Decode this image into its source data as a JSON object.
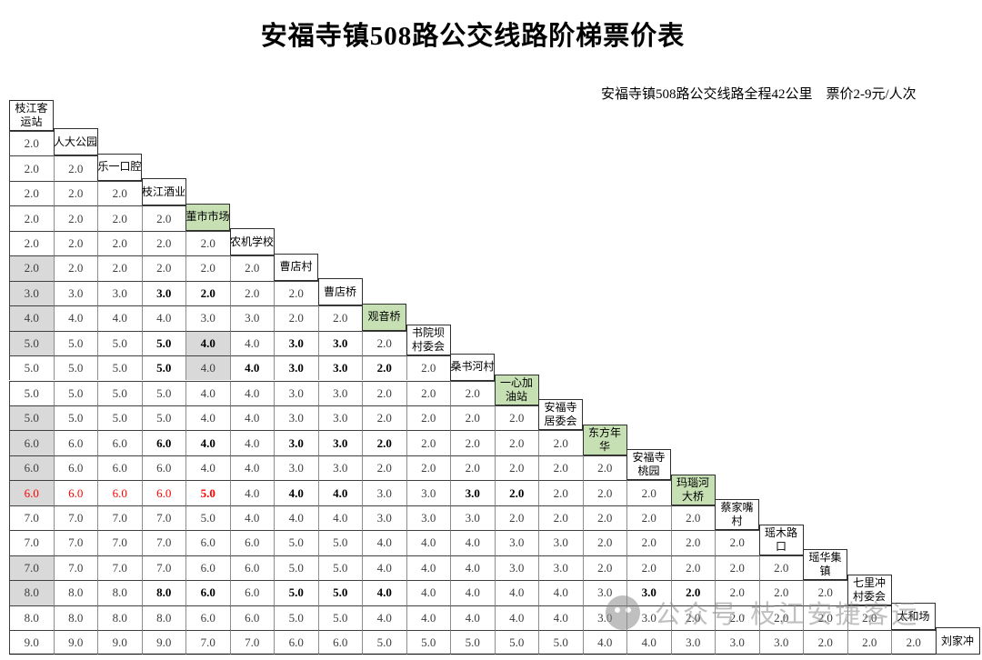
{
  "title": "安福寺镇508路公交线路阶梯票价表",
  "subtitle": "安福寺镇508路公交线路全程42公里　票价2-9元/人次",
  "watermark": {
    "icon": "wechat-logo",
    "text": "公众号·枝江安捷客运"
  },
  "colors": {
    "station_highlight_green": "#c6e0b4",
    "shaded_cell_gray": "#d9d9d9",
    "alert_red": "#ff0000"
  },
  "fare_table": {
    "unit": "元",
    "stations": [
      {
        "no": 1,
        "name": "枝江客运站",
        "lines": [
          "枝江客",
          "运站"
        ],
        "green": false
      },
      {
        "no": 2,
        "name": "人大公园",
        "lines": [
          "人大公园"
        ],
        "green": false
      },
      {
        "no": 3,
        "name": "乐一口腔",
        "lines": [
          "乐一口腔"
        ],
        "green": false
      },
      {
        "no": 4,
        "name": "枝江酒业",
        "lines": [
          "枝江酒业"
        ],
        "green": false
      },
      {
        "no": 5,
        "name": "董市市场",
        "lines": [
          "董市市场"
        ],
        "green": true
      },
      {
        "no": 6,
        "name": "农机学校",
        "lines": [
          "农机学校"
        ],
        "green": false
      },
      {
        "no": 7,
        "name": "曹店村",
        "lines": [
          "曹店村"
        ],
        "green": false
      },
      {
        "no": 8,
        "name": "曹店桥",
        "lines": [
          "曹店桥"
        ],
        "green": false
      },
      {
        "no": 9,
        "name": "观音桥",
        "lines": [
          "观音桥"
        ],
        "green": true
      },
      {
        "no": 10,
        "name": "书院坝村委会",
        "lines": [
          "书院坝",
          "村委会"
        ],
        "green": false
      },
      {
        "no": 11,
        "name": "桑书河村",
        "lines": [
          "桑书河村"
        ],
        "green": false
      },
      {
        "no": 12,
        "name": "一心加油站",
        "lines": [
          "一心加",
          "油站"
        ],
        "green": true
      },
      {
        "no": 13,
        "name": "安福寺居委会",
        "lines": [
          "安福寺",
          "居委会"
        ],
        "green": false
      },
      {
        "no": 14,
        "name": "东方年华",
        "lines": [
          "东方年",
          "华"
        ],
        "green": true
      },
      {
        "no": 15,
        "name": "安福寺桃园",
        "lines": [
          "安福寺",
          "桃园"
        ],
        "green": false
      },
      {
        "no": 16,
        "name": "玛瑙河大桥",
        "lines": [
          "玛瑙河",
          "大桥"
        ],
        "green": true
      },
      {
        "no": 17,
        "name": "蔡家嘴村",
        "lines": [
          "蔡家嘴",
          "村"
        ],
        "green": false
      },
      {
        "no": 18,
        "name": "瑶木路口",
        "lines": [
          "瑶木路",
          "口"
        ],
        "green": false
      },
      {
        "no": 19,
        "name": "瑶华集镇",
        "lines": [
          "瑶华集",
          "镇"
        ],
        "green": false
      },
      {
        "no": 20,
        "name": "七里冲村委会",
        "lines": [
          "七里冲",
          "村委会"
        ],
        "green": false
      },
      {
        "no": 21,
        "name": "太和场",
        "lines": [
          "太和场"
        ],
        "green": false
      },
      {
        "no": 22,
        "name": "刘家冲",
        "lines": [
          "刘家冲"
        ],
        "green": false
      }
    ],
    "fares": [
      [
        "2.0"
      ],
      [
        "2.0",
        "2.0"
      ],
      [
        "2.0",
        "2.0",
        "2.0"
      ],
      [
        "2.0",
        "2.0",
        "2.0",
        "2.0"
      ],
      [
        "2.0",
        "2.0",
        "2.0",
        "2.0",
        "2.0"
      ],
      [
        "2.0",
        "2.0",
        "2.0",
        "2.0",
        "2.0",
        "2.0"
      ],
      [
        "3.0",
        "3.0",
        "3.0",
        "3.0",
        "2.0",
        "2.0",
        "2.0"
      ],
      [
        "4.0",
        "4.0",
        "4.0",
        "4.0",
        "3.0",
        "3.0",
        "2.0",
        "2.0"
      ],
      [
        "5.0",
        "5.0",
        "5.0",
        "5.0",
        "4.0",
        "4.0",
        "3.0",
        "3.0",
        "2.0"
      ],
      [
        "5.0",
        "5.0",
        "5.0",
        "5.0",
        "4.0",
        "4.0",
        "3.0",
        "3.0",
        "2.0",
        "2.0"
      ],
      [
        "5.0",
        "5.0",
        "5.0",
        "5.0",
        "4.0",
        "4.0",
        "3.0",
        "3.0",
        "2.0",
        "2.0",
        "2.0"
      ],
      [
        "5.0",
        "5.0",
        "5.0",
        "5.0",
        "4.0",
        "4.0",
        "3.0",
        "3.0",
        "2.0",
        "2.0",
        "2.0",
        "2.0"
      ],
      [
        "6.0",
        "6.0",
        "6.0",
        "6.0",
        "4.0",
        "4.0",
        "3.0",
        "3.0",
        "2.0",
        "2.0",
        "2.0",
        "2.0",
        "2.0"
      ],
      [
        "6.0",
        "6.0",
        "6.0",
        "6.0",
        "4.0",
        "4.0",
        "3.0",
        "3.0",
        "2.0",
        "2.0",
        "2.0",
        "2.0",
        "2.0",
        "2.0"
      ],
      [
        "6.0",
        "6.0",
        "6.0",
        "6.0",
        "5.0",
        "4.0",
        "4.0",
        "4.0",
        "3.0",
        "3.0",
        "3.0",
        "2.0",
        "2.0",
        "2.0",
        "2.0"
      ],
      [
        "7.0",
        "7.0",
        "7.0",
        "7.0",
        "5.0",
        "4.0",
        "4.0",
        "4.0",
        "3.0",
        "3.0",
        "3.0",
        "2.0",
        "2.0",
        "2.0",
        "2.0",
        "2.0"
      ],
      [
        "7.0",
        "7.0",
        "7.0",
        "7.0",
        "6.0",
        "6.0",
        "5.0",
        "5.0",
        "4.0",
        "4.0",
        "4.0",
        "3.0",
        "3.0",
        "2.0",
        "2.0",
        "2.0",
        "2.0"
      ],
      [
        "7.0",
        "7.0",
        "7.0",
        "7.0",
        "6.0",
        "6.0",
        "5.0",
        "5.0",
        "4.0",
        "4.0",
        "4.0",
        "3.0",
        "3.0",
        "2.0",
        "2.0",
        "2.0",
        "2.0",
        "2.0"
      ],
      [
        "8.0",
        "8.0",
        "8.0",
        "8.0",
        "6.0",
        "6.0",
        "5.0",
        "5.0",
        "4.0",
        "4.0",
        "4.0",
        "4.0",
        "4.0",
        "3.0",
        "3.0",
        "2.0",
        "2.0",
        "2.0",
        "2.0"
      ],
      [
        "8.0",
        "8.0",
        "8.0",
        "8.0",
        "6.0",
        "6.0",
        "5.0",
        "5.0",
        "4.0",
        "4.0",
        "4.0",
        "4.0",
        "4.0",
        "3.0",
        "3.0",
        "2.0",
        "2.0",
        "2.0",
        "2.0",
        "2.0"
      ],
      [
        "9.0",
        "9.0",
        "9.0",
        "9.0",
        "7.0",
        "7.0",
        "6.0",
        "6.0",
        "5.0",
        "5.0",
        "5.0",
        "5.0",
        "5.0",
        "4.0",
        "4.0",
        "3.0",
        "3.0",
        "3.0",
        "2.0",
        "2.0",
        "2.0"
      ]
    ],
    "styles": {
      "bold_cells": {
        "7": [
          4,
          5
        ],
        "9": [
          4,
          5,
          7,
          8
        ],
        "10": [
          4,
          6,
          7,
          8,
          9
        ],
        "13": [
          4,
          5,
          7,
          8,
          9
        ],
        "15": [
          5,
          7,
          8,
          11,
          12
        ],
        "19": [
          4,
          5,
          7,
          8,
          9,
          15,
          16
        ]
      },
      "red_cells": {
        "15": [
          1,
          2,
          3,
          4,
          5
        ]
      },
      "gray_cells": [
        [
          6,
          1
        ],
        [
          7,
          1
        ],
        [
          8,
          1
        ],
        [
          9,
          1
        ],
        [
          12,
          1
        ],
        [
          13,
          1
        ],
        [
          14,
          1
        ],
        [
          15,
          1
        ],
        [
          18,
          1
        ],
        [
          19,
          1
        ],
        [
          9,
          5
        ],
        [
          10,
          5
        ]
      ]
    }
  }
}
